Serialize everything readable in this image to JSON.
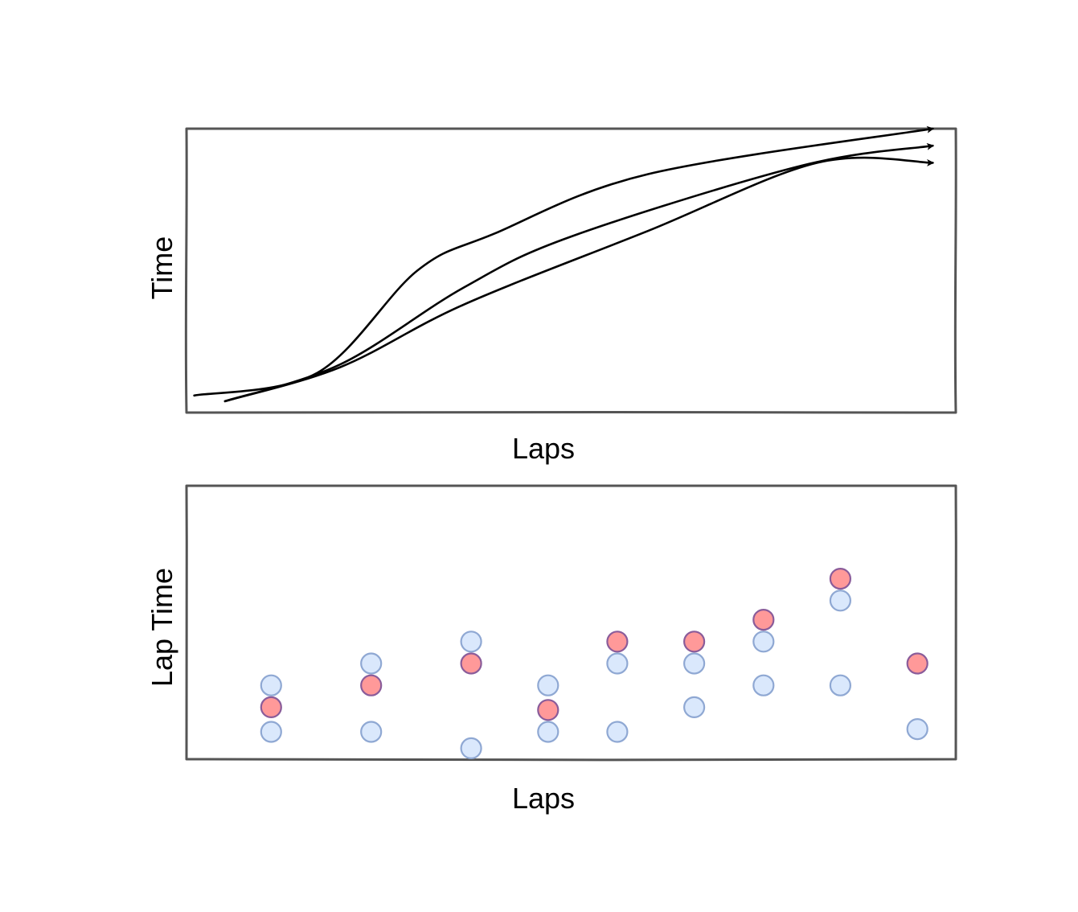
{
  "chart_data": [
    {
      "type": "line",
      "title": "",
      "xlabel": "Laps",
      "ylabel": "Time",
      "xlim": [
        0,
        1
      ],
      "ylim": [
        0,
        1
      ],
      "grid": false,
      "ticks": false,
      "series": [
        {
          "x": [
            0.01,
            0.17,
            0.3,
            0.4,
            0.6,
            0.97
          ],
          "values": [
            0.06,
            0.14,
            0.5,
            0.63,
            0.84,
            1.0
          ]
        },
        {
          "x": [
            0.05,
            0.2,
            0.36,
            0.5,
            0.8,
            0.97
          ],
          "values": [
            0.04,
            0.17,
            0.44,
            0.62,
            0.87,
            0.94
          ]
        },
        {
          "x": [
            0.05,
            0.2,
            0.36,
            0.6,
            0.82,
            0.97
          ],
          "values": [
            0.04,
            0.16,
            0.38,
            0.64,
            0.88,
            0.88
          ]
        }
      ],
      "colors": {
        "line": "#000000",
        "frame": "#555555"
      }
    },
    {
      "type": "scatter",
      "title": "",
      "xlabel": "Laps",
      "ylabel": "Lap Time",
      "xlim": [
        0,
        1
      ],
      "ylim": [
        0,
        1
      ],
      "grid": false,
      "ticks": false,
      "series": [
        {
          "role": "highlighted",
          "color": "#FF9999",
          "stroke": "#8A5C9A",
          "points": [
            {
              "x": 0.11,
              "y": 0.19
            },
            {
              "x": 0.24,
              "y": 0.27
            },
            {
              "x": 0.37,
              "y": 0.35
            },
            {
              "x": 0.47,
              "y": 0.18
            },
            {
              "x": 0.56,
              "y": 0.43
            },
            {
              "x": 0.66,
              "y": 0.43
            },
            {
              "x": 0.75,
              "y": 0.51
            },
            {
              "x": 0.85,
              "y": 0.66
            },
            {
              "x": 0.95,
              "y": 0.35
            }
          ]
        },
        {
          "role": "background",
          "color": "#DAE8FC",
          "stroke": "#8FA8D3",
          "points": [
            {
              "x": 0.11,
              "y": 0.27
            },
            {
              "x": 0.11,
              "y": 0.1
            },
            {
              "x": 0.24,
              "y": 0.35
            },
            {
              "x": 0.24,
              "y": 0.1
            },
            {
              "x": 0.37,
              "y": 0.43
            },
            {
              "x": 0.37,
              "y": 0.04
            },
            {
              "x": 0.47,
              "y": 0.27
            },
            {
              "x": 0.47,
              "y": 0.1
            },
            {
              "x": 0.56,
              "y": 0.35
            },
            {
              "x": 0.56,
              "y": 0.1
            },
            {
              "x": 0.66,
              "y": 0.35
            },
            {
              "x": 0.66,
              "y": 0.19
            },
            {
              "x": 0.75,
              "y": 0.43
            },
            {
              "x": 0.75,
              "y": 0.27
            },
            {
              "x": 0.85,
              "y": 0.58
            },
            {
              "x": 0.85,
              "y": 0.27
            },
            {
              "x": 0.95,
              "y": 0.11
            }
          ]
        }
      ]
    }
  ]
}
